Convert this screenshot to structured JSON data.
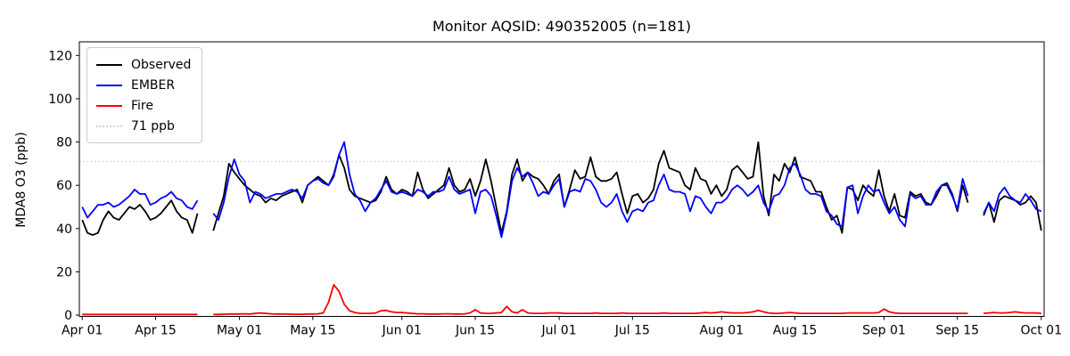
{
  "title": "Monitor AQSID: 490352005 (n=181)",
  "chart_data": {
    "type": "line",
    "title": "Monitor AQSID: 490352005 (n=181)",
    "xlabel": "",
    "ylabel": "MDA8 O3 (ppb)",
    "x_start_label": "Apr 01",
    "x_end_label": "Oct 01",
    "x_frequency": "daily",
    "x_tick_labels": [
      "Apr 01",
      "Apr 15",
      "May 01",
      "May 15",
      "Jun 01",
      "Jun 15",
      "Jul 01",
      "Jul 15",
      "Aug 01",
      "Aug 15",
      "Sep 01",
      "Sep 15",
      "Oct 01"
    ],
    "x_tick_days": [
      0,
      14,
      30,
      44,
      61,
      75,
      91,
      105,
      122,
      136,
      153,
      167,
      183
    ],
    "y_ticks": [
      0,
      20,
      40,
      60,
      80,
      100,
      120
    ],
    "xlim_days": [
      -0.55,
      183.55
    ],
    "ylim": [
      -0.6,
      126.3
    ],
    "grid": false,
    "legend_position": "upper left",
    "threshold": {
      "label": "71 ppb",
      "value": 71,
      "color": "#d3d3d3",
      "style": "dotted"
    },
    "series": [
      {
        "name": "Observed",
        "color": "#000000",
        "values": [
          44,
          38,
          37,
          38,
          44,
          48,
          45,
          44,
          47,
          50,
          49,
          51,
          48,
          44,
          45,
          47,
          50,
          53,
          48,
          45,
          44,
          38,
          47,
          null,
          null,
          39,
          47,
          55,
          70,
          66,
          63,
          60,
          58,
          56,
          55,
          52,
          54,
          53,
          55,
          56,
          57,
          58,
          52,
          60,
          62,
          64,
          62,
          60,
          65,
          74,
          68,
          58,
          55,
          54,
          53,
          52,
          53,
          57,
          64,
          58,
          56,
          58,
          57,
          55,
          66,
          58,
          54,
          56,
          58,
          60,
          68,
          60,
          57,
          58,
          63,
          55,
          62,
          72,
          62,
          50,
          38,
          48,
          65,
          72,
          62,
          66,
          64,
          63,
          60,
          56,
          62,
          65,
          50,
          58,
          67,
          63,
          64,
          73,
          64,
          62,
          62,
          63,
          66,
          56,
          47,
          55,
          56,
          52,
          54,
          58,
          70,
          76,
          68,
          67,
          66,
          60,
          58,
          68,
          63,
          62,
          56,
          60,
          55,
          58,
          67,
          69,
          66,
          63,
          64,
          80,
          55,
          46,
          65,
          62,
          70,
          66,
          73,
          64,
          63,
          62,
          57,
          57,
          50,
          44,
          46,
          38,
          59,
          58,
          53,
          60,
          57,
          55,
          67,
          55,
          48,
          56,
          46,
          45,
          57,
          55,
          56,
          52,
          51,
          55,
          60,
          61,
          56,
          48,
          60,
          52,
          null,
          null,
          46,
          52,
          43,
          53,
          55,
          54,
          53,
          51,
          52,
          55,
          52,
          39
        ]
      },
      {
        "name": "EMBER",
        "color": "#0000ff",
        "values": [
          50,
          45,
          48,
          51,
          51,
          52,
          50,
          51,
          53,
          55,
          58,
          56,
          56,
          51,
          52,
          54,
          55,
          57,
          54,
          53,
          50,
          49,
          53,
          null,
          null,
          47,
          44,
          52,
          64,
          72,
          65,
          62,
          52,
          57,
          56,
          54,
          55,
          56,
          56,
          57,
          58,
          57,
          54,
          60,
          62,
          63,
          61,
          60,
          64,
          74,
          80,
          65,
          56,
          53,
          48,
          52,
          54,
          58,
          62,
          57,
          56,
          57,
          56,
          55,
          58,
          57,
          55,
          57,
          57,
          58,
          64,
          58,
          56,
          57,
          58,
          47,
          57,
          58,
          55,
          46,
          36,
          47,
          62,
          68,
          64,
          66,
          61,
          55,
          57,
          56,
          60,
          63,
          50,
          57,
          58,
          57,
          63,
          62,
          58,
          52,
          50,
          52,
          56,
          48,
          43,
          48,
          49,
          48,
          52,
          53,
          60,
          65,
          58,
          57,
          57,
          56,
          48,
          55,
          54,
          50,
          47,
          52,
          52,
          54,
          58,
          60,
          58,
          55,
          57,
          60,
          52,
          48,
          55,
          56,
          60,
          68,
          70,
          65,
          58,
          56,
          56,
          55,
          48,
          46,
          42,
          41,
          59,
          60,
          47,
          55,
          60,
          57,
          58,
          52,
          47,
          50,
          44,
          41,
          56,
          54,
          55,
          51,
          51,
          57,
          60,
          60,
          55,
          49,
          63,
          55,
          null,
          null,
          47,
          52,
          48,
          56,
          59,
          55,
          53,
          52,
          56,
          53,
          49,
          48
        ]
      },
      {
        "name": "Fire",
        "color": "#ff0000",
        "values": [
          0.3,
          0.3,
          0.3,
          0.3,
          0.3,
          0.3,
          0.3,
          0.3,
          0.3,
          0.3,
          0.3,
          0.3,
          0.3,
          0.3,
          0.3,
          0.3,
          0.3,
          0.3,
          0.3,
          0.3,
          0.3,
          0.3,
          0.3,
          null,
          null,
          0.3,
          0.3,
          0.4,
          0.5,
          0.5,
          0.5,
          0.6,
          0.5,
          0.8,
          1.0,
          0.8,
          0.6,
          0.5,
          0.5,
          0.5,
          0.4,
          0.4,
          0.4,
          0.5,
          0.5,
          0.6,
          1.0,
          6.0,
          14.0,
          11.0,
          5.0,
          2.0,
          1.2,
          0.8,
          0.8,
          0.8,
          1.0,
          2.0,
          2.2,
          1.5,
          1.2,
          1.2,
          1.0,
          0.8,
          0.6,
          0.6,
          0.5,
          0.5,
          0.5,
          0.6,
          0.6,
          0.5,
          0.5,
          0.6,
          1.0,
          2.5,
          1.0,
          0.8,
          0.8,
          1.0,
          1.2,
          4.0,
          1.5,
          1.0,
          2.5,
          1.0,
          0.8,
          0.8,
          0.8,
          1.0,
          1.0,
          1.0,
          0.8,
          0.8,
          0.8,
          0.8,
          0.8,
          0.8,
          1.0,
          0.8,
          0.8,
          0.8,
          0.8,
          1.0,
          0.8,
          0.8,
          0.8,
          0.8,
          0.8,
          0.8,
          0.8,
          1.0,
          0.8,
          0.8,
          0.8,
          0.8,
          0.8,
          0.8,
          1.0,
          1.2,
          1.0,
          1.2,
          1.5,
          1.2,
          1.0,
          1.0,
          1.0,
          1.2,
          1.5,
          2.2,
          1.5,
          1.0,
          0.8,
          0.8,
          1.0,
          1.2,
          1.0,
          0.8,
          0.8,
          0.8,
          0.8,
          0.8,
          0.8,
          0.8,
          0.8,
          0.8,
          1.0,
          1.0,
          1.0,
          1.0,
          1.0,
          1.0,
          1.2,
          2.8,
          1.5,
          1.0,
          0.8,
          0.8,
          0.8,
          0.8,
          0.8,
          0.8,
          0.8,
          0.8,
          0.8,
          0.8,
          0.8,
          0.8,
          0.8,
          0.8,
          null,
          null,
          0.8,
          1.0,
          1.2,
          1.0,
          1.0,
          1.2,
          1.5,
          1.2,
          1.0,
          1.0,
          1.0,
          0.8
        ]
      }
    ]
  },
  "legend": {
    "entries": [
      {
        "label": "Observed"
      },
      {
        "label": "EMBER"
      },
      {
        "label": "Fire"
      },
      {
        "label": "71 ppb"
      }
    ]
  }
}
